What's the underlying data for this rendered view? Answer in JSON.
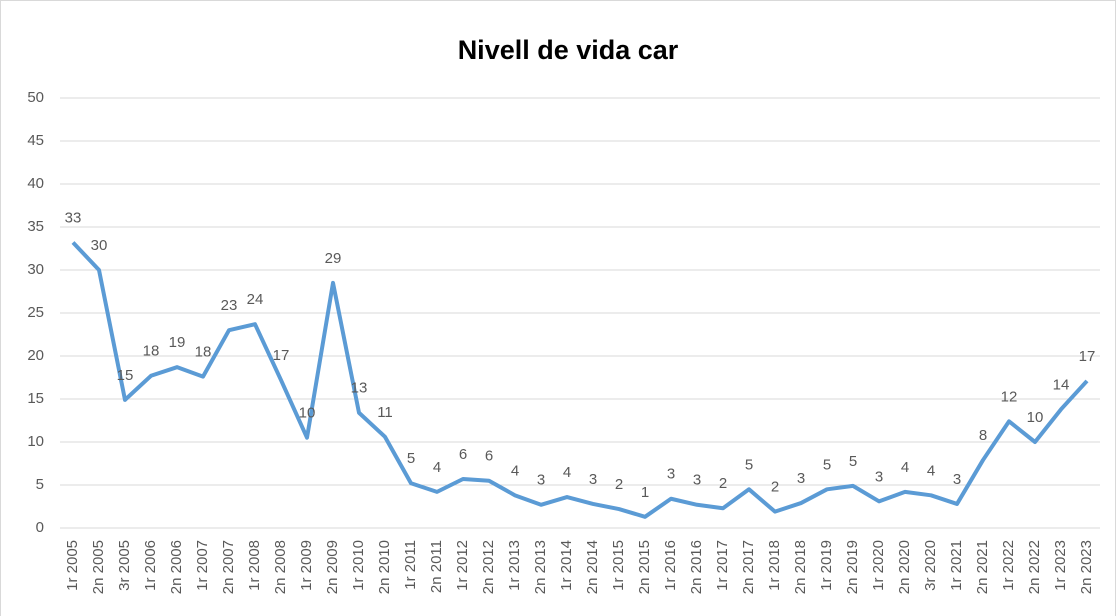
{
  "chart_data": {
    "type": "line",
    "title": "Nivell de vida car",
    "categories": [
      "1r 2005",
      "2n 2005",
      "3r 2005",
      "1r 2006",
      "2n 2006",
      "1r 2007",
      "2n 2007",
      "1r 2008",
      "2n 2008",
      "1r 2009",
      "2n 2009",
      "1r 2010",
      "2n 2010",
      "1r 2011",
      "2n 2011",
      "1r 2012",
      "2n 2012",
      "1r 2013",
      "2n 2013",
      "1r 2014",
      "2n 2014",
      "1r 2015",
      "2n 2015",
      "1r 2016",
      "2n 2016",
      "1r 2017",
      "2n 2017",
      "1r 2018",
      "2n 2018",
      "1r 2019",
      "2n 2019",
      "1r 2020",
      "2n 2020",
      "3r 2020",
      "1r 2021",
      "2n 2021",
      "1r 2022",
      "2n 2022",
      "1r 2023",
      "2n 2023"
    ],
    "series": [
      {
        "name": "Nivell de vida car",
        "color": "#5b9bd5",
        "values": [
          33.2,
          30.0,
          14.9,
          17.7,
          18.7,
          17.6,
          23.0,
          23.7,
          17.2,
          10.5,
          28.5,
          13.4,
          10.6,
          5.2,
          4.2,
          5.7,
          5.5,
          3.8,
          2.7,
          3.6,
          2.8,
          2.2,
          1.3,
          3.4,
          2.7,
          2.3,
          4.5,
          1.9,
          2.9,
          4.5,
          4.9,
          3.1,
          4.2,
          3.8,
          2.8,
          7.9,
          12.4,
          10.0,
          13.8,
          17.1
        ],
        "value_labels": [
          33,
          30,
          15,
          18,
          19,
          18,
          23,
          24,
          17,
          10,
          29,
          13,
          11,
          5,
          4,
          6,
          6,
          4,
          3,
          4,
          3,
          2,
          1,
          3,
          3,
          2,
          5,
          2,
          3,
          5,
          5,
          3,
          4,
          4,
          3,
          8,
          12,
          10,
          14,
          17
        ]
      }
    ],
    "ylim": [
      0,
      50
    ],
    "yticks": [
      0,
      5,
      10,
      15,
      20,
      25,
      30,
      35,
      40,
      45,
      50
    ],
    "grid": true
  }
}
